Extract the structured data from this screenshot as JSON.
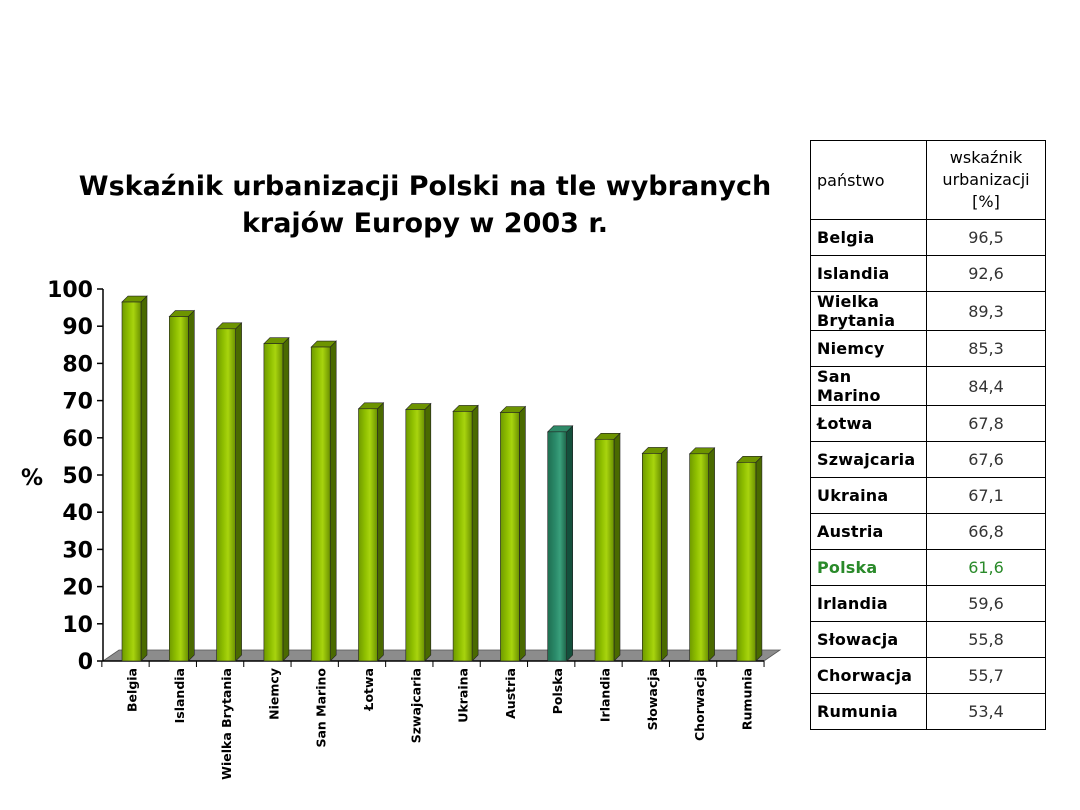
{
  "chart_data": {
    "type": "bar",
    "title_lines": [
      "Wskaźnik urbanizacji Polski na tle wybranych",
      "krajów Europy w 2003 r."
    ],
    "ylabel": "%",
    "ylim": [
      0,
      100
    ],
    "yticks": [
      0,
      10,
      20,
      30,
      40,
      50,
      60,
      70,
      80,
      90,
      100
    ],
    "categories": [
      "Belgia",
      "Islandia",
      "Wielka Brytania",
      "Niemcy",
      "San Marino",
      "Łotwa",
      "Szwajcaria",
      "Ukraina",
      "Austria",
      "Polska",
      "Irlandia",
      "Słowacja",
      "Chorwacja",
      "Rumunia"
    ],
    "values": [
      96.5,
      92.6,
      89.3,
      85.3,
      84.4,
      67.8,
      67.6,
      67.1,
      66.8,
      61.6,
      59.6,
      55.8,
      55.7,
      53.4
    ],
    "highlight_category": "Polska",
    "colors": {
      "bar": "#8fbf00",
      "bar_dark": "#4a6a00",
      "highlight": "#2a8a6a",
      "highlight_dark": "#14503c",
      "floor": "#8c8c8c"
    },
    "grid": false
  },
  "table": {
    "headers": [
      "państwo",
      "wskaźnik urbanizacji [%]"
    ],
    "rows": [
      [
        "Belgia",
        "96,5"
      ],
      [
        "Islandia",
        "92,6"
      ],
      [
        "Wielka Brytania",
        "89,3"
      ],
      [
        "Niemcy",
        "85,3"
      ],
      [
        "San Marino",
        "84,4"
      ],
      [
        "Łotwa",
        "67,8"
      ],
      [
        "Szwajcaria",
        "67,6"
      ],
      [
        "Ukraina",
        "67,1"
      ],
      [
        "Austria",
        "66,8"
      ],
      [
        "Polska",
        "61,6"
      ],
      [
        "Irlandia",
        "59,6"
      ],
      [
        "Słowacja",
        "55,8"
      ],
      [
        "Chorwacja",
        "55,7"
      ],
      [
        "Rumunia",
        "53,4"
      ]
    ],
    "highlight_row": "Polska"
  }
}
